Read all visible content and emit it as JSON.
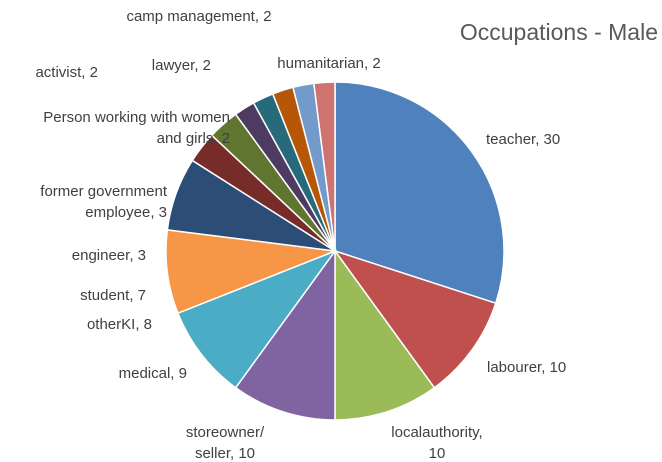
{
  "chart_data": {
    "type": "pie",
    "title": "Occupations - Male",
    "labels": [
      "teacher, 30",
      "labourer, 10",
      "localauthority,\n10",
      "storeowner/\nseller, 10",
      "medical, 9",
      "otherKI, 8",
      "student, 7",
      "engineer, 3",
      "former government\nemployee, 3",
      "Person working with women\nand girls, 2",
      "activist, 2",
      "lawyer, 2",
      "camp management, 2",
      "humanitarian, 2"
    ],
    "values": [
      30,
      10,
      10,
      10,
      9,
      8,
      7,
      3,
      3,
      2,
      2,
      2,
      2,
      2
    ],
    "colors": [
      "#4f81bd",
      "#c0504d",
      "#9bbb59",
      "#8064a2",
      "#4bacc6",
      "#f79646",
      "#2c4d75",
      "#772c2a",
      "#5f7530",
      "#4d3b62",
      "#276a7c",
      "#b65708",
      "#729aca",
      "#d0726f"
    ]
  }
}
